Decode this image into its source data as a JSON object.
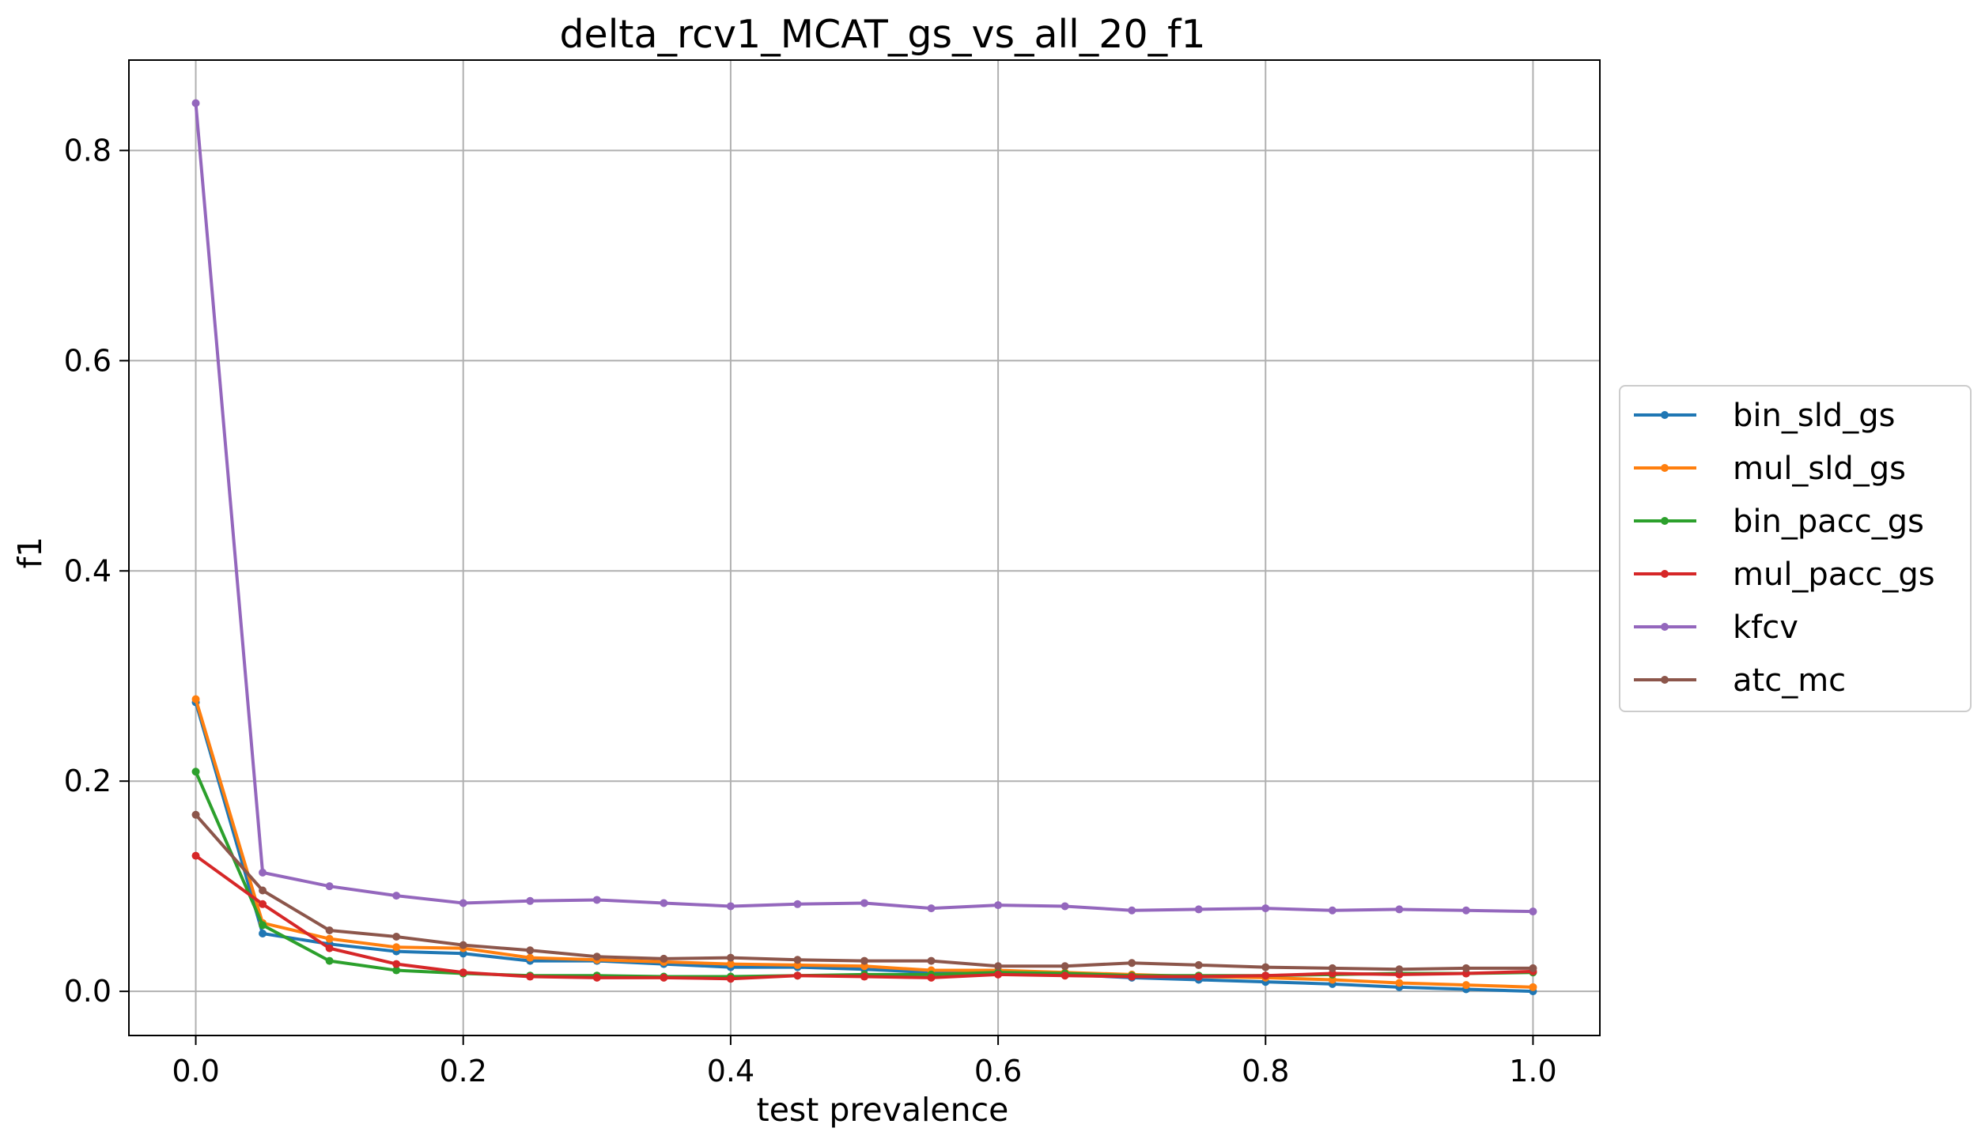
{
  "chart_data": {
    "type": "line",
    "title": "delta_rcv1_MCAT_gs_vs_all_20_f1",
    "xlabel": "test prevalence",
    "ylabel": "f1",
    "xlim": [
      -0.05,
      1.05
    ],
    "ylim": [
      -0.042,
      0.886
    ],
    "xticks": [
      0.0,
      0.2,
      0.4,
      0.6,
      0.8,
      1.0
    ],
    "xtick_labels": [
      "0.0",
      "0.2",
      "0.4",
      "0.6",
      "0.8",
      "1.0"
    ],
    "yticks": [
      0.0,
      0.2,
      0.4,
      0.6,
      0.8
    ],
    "ytick_labels": [
      "0.0",
      "0.2",
      "0.4",
      "0.6",
      "0.8"
    ],
    "grid": true,
    "legend_position": "right, outside plot",
    "x": [
      0.0,
      0.05,
      0.1,
      0.15,
      0.2,
      0.25,
      0.3,
      0.35,
      0.4,
      0.45,
      0.5,
      0.55,
      0.6,
      0.65,
      0.7,
      0.75,
      0.8,
      0.85,
      0.9,
      0.95,
      1.0
    ],
    "series": [
      {
        "name": "bin_sld_gs",
        "color": "#1f77b4",
        "values": [
          0.275,
          0.055,
          0.045,
          0.038,
          0.036,
          0.029,
          0.029,
          0.026,
          0.023,
          0.023,
          0.021,
          0.018,
          0.018,
          0.016,
          0.013,
          0.011,
          0.009,
          0.007,
          0.004,
          0.002,
          0.0
        ]
      },
      {
        "name": "mul_sld_gs",
        "color": "#ff7f0e",
        "values": [
          0.278,
          0.065,
          0.05,
          0.042,
          0.041,
          0.032,
          0.03,
          0.028,
          0.026,
          0.025,
          0.024,
          0.02,
          0.02,
          0.018,
          0.016,
          0.014,
          0.013,
          0.011,
          0.008,
          0.006,
          0.004
        ]
      },
      {
        "name": "bin_pacc_gs",
        "color": "#2ca02c",
        "values": [
          0.209,
          0.063,
          0.029,
          0.02,
          0.017,
          0.015,
          0.015,
          0.014,
          0.014,
          0.015,
          0.016,
          0.016,
          0.018,
          0.017,
          0.015,
          0.015,
          0.015,
          0.016,
          0.017,
          0.017,
          0.018
        ]
      },
      {
        "name": "mul_pacc_gs",
        "color": "#d62728",
        "values": [
          0.129,
          0.083,
          0.041,
          0.026,
          0.018,
          0.014,
          0.013,
          0.013,
          0.012,
          0.015,
          0.014,
          0.013,
          0.016,
          0.015,
          0.014,
          0.014,
          0.015,
          0.017,
          0.016,
          0.017,
          0.019
        ]
      },
      {
        "name": "kfcv",
        "color": "#9467bd",
        "values": [
          0.845,
          0.113,
          0.1,
          0.091,
          0.084,
          0.086,
          0.087,
          0.084,
          0.081,
          0.083,
          0.084,
          0.079,
          0.082,
          0.081,
          0.077,
          0.078,
          0.079,
          0.077,
          0.078,
          0.077,
          0.076
        ]
      },
      {
        "name": "atc_mc",
        "color": "#8c564b",
        "values": [
          0.168,
          0.096,
          0.058,
          0.052,
          0.044,
          0.039,
          0.033,
          0.031,
          0.032,
          0.03,
          0.029,
          0.029,
          0.024,
          0.024,
          0.027,
          0.025,
          0.023,
          0.022,
          0.021,
          0.022,
          0.022
        ]
      }
    ]
  }
}
